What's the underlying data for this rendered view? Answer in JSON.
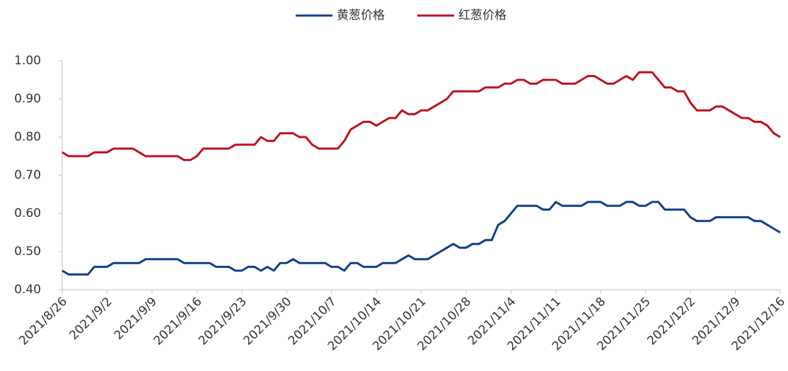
{
  "chart_data": {
    "type": "line",
    "categories": [
      "2021/8/26",
      null,
      null,
      null,
      null,
      null,
      null,
      "2021/9/2",
      null,
      null,
      null,
      null,
      null,
      null,
      "2021/9/9",
      null,
      null,
      null,
      null,
      null,
      null,
      "2021/9/16",
      null,
      null,
      null,
      null,
      null,
      null,
      "2021/9/23",
      null,
      null,
      null,
      null,
      null,
      null,
      "2021/9/30",
      null,
      null,
      null,
      null,
      null,
      null,
      "2021/10/7",
      null,
      null,
      null,
      null,
      null,
      null,
      "2021/10/14",
      null,
      null,
      null,
      null,
      null,
      null,
      "2021/10/21",
      null,
      null,
      null,
      null,
      null,
      null,
      "2021/10/28",
      null,
      null,
      null,
      null,
      null,
      null,
      "2021/11/4",
      null,
      null,
      null,
      null,
      null,
      null,
      "2021/11/11",
      null,
      null,
      null,
      null,
      null,
      null,
      "2021/11/18",
      null,
      null,
      null,
      null,
      null,
      null,
      "2021/11/25",
      null,
      null,
      null,
      null,
      null,
      null,
      "2021/12/2",
      null,
      null,
      null,
      null,
      null,
      null,
      "2021/12/9",
      null,
      null,
      null,
      null,
      null,
      null,
      "2021/12/16"
    ],
    "series": [
      {
        "name": "黄葱价格",
        "color": "#0e3f8c",
        "values": [
          0.45,
          0.44,
          0.44,
          0.44,
          0.44,
          0.46,
          0.46,
          0.46,
          0.47,
          0.47,
          0.47,
          0.47,
          0.47,
          0.48,
          0.48,
          0.48,
          0.48,
          0.48,
          0.48,
          0.47,
          0.47,
          0.47,
          0.47,
          0.47,
          0.46,
          0.46,
          0.46,
          0.45,
          0.45,
          0.46,
          0.46,
          0.45,
          0.46,
          0.45,
          0.47,
          0.47,
          0.48,
          0.47,
          0.47,
          0.47,
          0.47,
          0.47,
          0.46,
          0.46,
          0.45,
          0.47,
          0.47,
          0.46,
          0.46,
          0.46,
          0.47,
          0.47,
          0.47,
          0.48,
          0.49,
          0.48,
          0.48,
          0.48,
          0.49,
          0.5,
          0.51,
          0.52,
          0.51,
          0.51,
          0.52,
          0.52,
          0.53,
          0.53,
          0.57,
          0.58,
          0.6,
          0.62,
          0.62,
          0.62,
          0.62,
          0.61,
          0.61,
          0.63,
          0.62,
          0.62,
          0.62,
          0.62,
          0.63,
          0.63,
          0.63,
          0.62,
          0.62,
          0.62,
          0.63,
          0.63,
          0.62,
          0.62,
          0.63,
          0.63,
          0.61,
          0.61,
          0.61,
          0.61,
          0.59,
          0.58,
          0.58,
          0.58,
          0.59,
          0.59,
          0.59,
          0.59,
          0.59,
          0.59,
          0.58,
          0.58,
          0.57,
          0.56,
          0.55
        ]
      },
      {
        "name": "红葱价格",
        "color": "#c0101c",
        "values": [
          0.76,
          0.75,
          0.75,
          0.75,
          0.75,
          0.76,
          0.76,
          0.76,
          0.77,
          0.77,
          0.77,
          0.77,
          0.76,
          0.75,
          0.75,
          0.75,
          0.75,
          0.75,
          0.75,
          0.74,
          0.74,
          0.75,
          0.77,
          0.77,
          0.77,
          0.77,
          0.77,
          0.78,
          0.78,
          0.78,
          0.78,
          0.8,
          0.79,
          0.79,
          0.81,
          0.81,
          0.81,
          0.8,
          0.8,
          0.78,
          0.77,
          0.77,
          0.77,
          0.77,
          0.79,
          0.82,
          0.83,
          0.84,
          0.84,
          0.83,
          0.84,
          0.85,
          0.85,
          0.87,
          0.86,
          0.86,
          0.87,
          0.87,
          0.88,
          0.89,
          0.9,
          0.92,
          0.92,
          0.92,
          0.92,
          0.92,
          0.93,
          0.93,
          0.93,
          0.94,
          0.94,
          0.95,
          0.95,
          0.94,
          0.94,
          0.95,
          0.95,
          0.95,
          0.94,
          0.94,
          0.94,
          0.95,
          0.96,
          0.96,
          0.95,
          0.94,
          0.94,
          0.95,
          0.96,
          0.95,
          0.97,
          0.97,
          0.97,
          0.95,
          0.93,
          0.93,
          0.92,
          0.92,
          0.89,
          0.87,
          0.87,
          0.87,
          0.88,
          0.88,
          0.87,
          0.86,
          0.85,
          0.85,
          0.84,
          0.84,
          0.83,
          0.81,
          0.8
        ]
      }
    ],
    "ylim": [
      0.4,
      1.0
    ],
    "yticks": [
      {
        "value": 0.4,
        "label": "0.40"
      },
      {
        "value": 0.5,
        "label": "0.50"
      },
      {
        "value": 0.6,
        "label": "0.60"
      },
      {
        "value": 0.7,
        "label": "0.70"
      },
      {
        "value": 0.8,
        "label": "0.80"
      },
      {
        "value": 0.9,
        "label": "0.90"
      },
      {
        "value": 1.0,
        "label": "1.00"
      }
    ],
    "legend": "top"
  }
}
